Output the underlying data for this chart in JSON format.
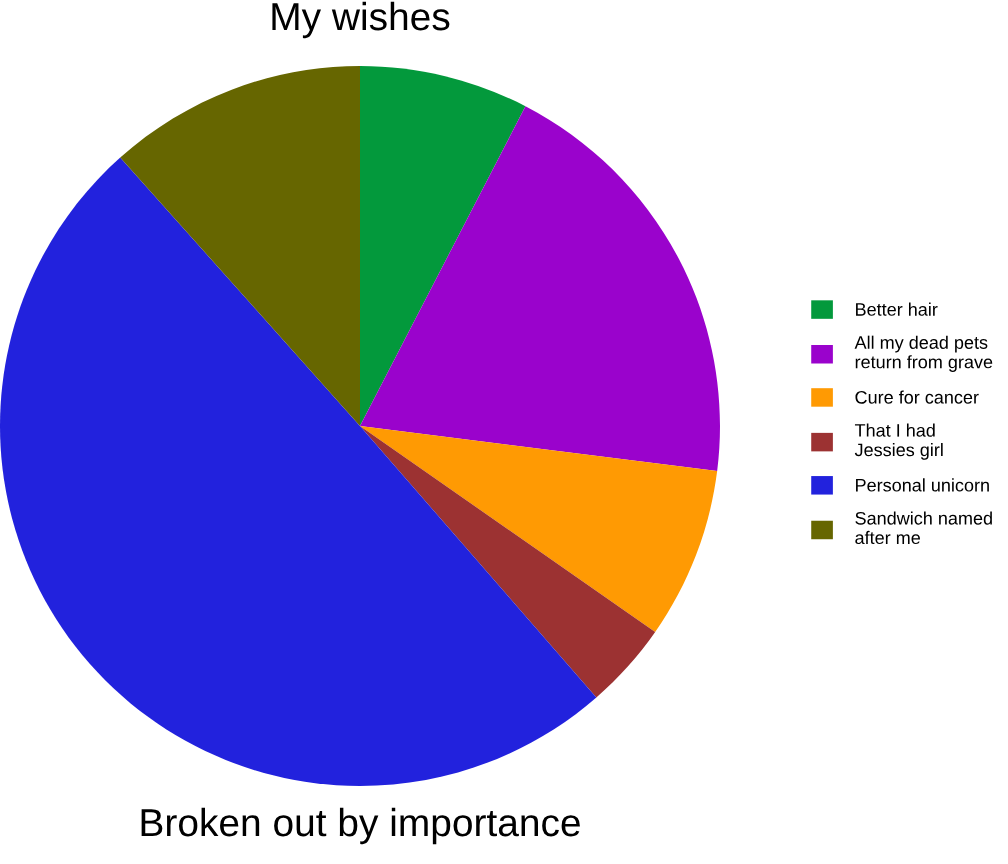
{
  "chart_data": {
    "type": "pie",
    "title": "My wishes",
    "categories": [
      "Better hair",
      "All my dead pets return from grave",
      "Cure for cancer",
      "That I had Jessies girl",
      "Personal unicorn",
      "Sandwich named after me"
    ],
    "values": [
      7.6,
      19.4,
      7.7,
      3.9,
      49.8,
      11.6
    ],
    "colors": [
      "#03993c",
      "#9a03cc",
      "#ff9a03",
      "#9c3232",
      "#2222dd",
      "#666600"
    ],
    "annotations": [
      "Broken out by importance"
    ],
    "legend": "right"
  }
}
